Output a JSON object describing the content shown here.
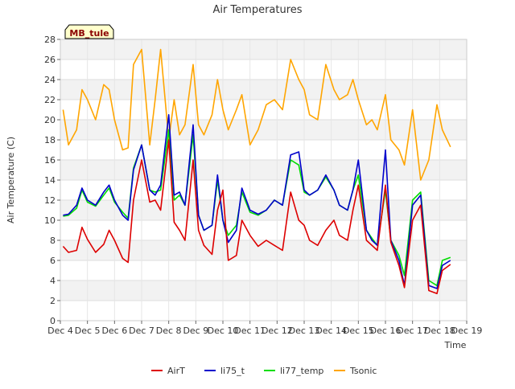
{
  "chart_data": {
    "type": "line",
    "title": "Air Temperatures",
    "xlabel": "Time",
    "ylabel": "Air Temperature (C)",
    "ylim": [
      0,
      28
    ],
    "yticks": [
      0,
      2,
      4,
      6,
      8,
      10,
      12,
      14,
      16,
      18,
      20,
      22,
      24,
      26,
      28
    ],
    "xlim": [
      4,
      19
    ],
    "xticks": [
      {
        "day": 4,
        "label": "Dec 4"
      },
      {
        "day": 5,
        "label": "Dec 5"
      },
      {
        "day": 6,
        "label": "Dec 6"
      },
      {
        "day": 7,
        "label": "Dec 7"
      },
      {
        "day": 8,
        "label": "Dec 8"
      },
      {
        "day": 9,
        "label": "Dec 9"
      },
      {
        "day": 10,
        "label": "Dec 10"
      },
      {
        "day": 11,
        "label": "Dec 11"
      },
      {
        "day": 12,
        "label": "Dec 12"
      },
      {
        "day": 13,
        "label": "Dec 13"
      },
      {
        "day": 14,
        "label": "Dec 14"
      },
      {
        "day": 15,
        "label": "Dec 15"
      },
      {
        "day": 16,
        "label": "Dec 16"
      },
      {
        "day": 17,
        "label": "Dec 17"
      },
      {
        "day": 18,
        "label": "Dec 18"
      },
      {
        "day": 19,
        "label": "Dec 19"
      }
    ],
    "station_label": "MB_tule",
    "grid": "horizontal",
    "banded_background": true,
    "legend_position": "bottom",
    "x": [
      4.1,
      4.3,
      4.6,
      4.8,
      5.0,
      5.3,
      5.6,
      5.8,
      6.0,
      6.3,
      6.5,
      6.7,
      7.0,
      7.3,
      7.5,
      7.7,
      8.0,
      8.2,
      8.4,
      8.6,
      8.9,
      9.1,
      9.3,
      9.6,
      9.8,
      10.0,
      10.2,
      10.5,
      10.7,
      11.0,
      11.3,
      11.6,
      11.9,
      12.2,
      12.5,
      12.8,
      13.0,
      13.2,
      13.5,
      13.8,
      14.1,
      14.3,
      14.6,
      14.8,
      15.0,
      15.3,
      15.5,
      15.7,
      16.0,
      16.2,
      16.5,
      16.7,
      17.0,
      17.3,
      17.6,
      17.9,
      18.1,
      18.4
    ],
    "series": [
      {
        "name": "AirT",
        "color": "#dd0000",
        "values": [
          7.4,
          6.8,
          7.0,
          9.3,
          8.1,
          6.8,
          7.6,
          9.0,
          8.0,
          6.2,
          5.8,
          12.0,
          16.0,
          11.8,
          12.0,
          11.0,
          18.0,
          9.8,
          9.0,
          8.0,
          16.0,
          9.0,
          7.5,
          6.6,
          11.0,
          13.0,
          6.0,
          6.5,
          10.0,
          8.5,
          7.4,
          8.0,
          7.5,
          7.0,
          12.8,
          10.0,
          9.5,
          8.0,
          7.5,
          9.0,
          10.0,
          8.5,
          8.0,
          11.0,
          13.5,
          8.0,
          7.5,
          7.0,
          13.5,
          7.8,
          5.5,
          3.3,
          10.0,
          11.5,
          3.0,
          2.7,
          5.0,
          5.6
        ]
      },
      {
        "name": "li75_t",
        "color": "#0000cc",
        "values": [
          10.5,
          10.6,
          11.5,
          13.2,
          12.0,
          11.5,
          12.8,
          13.5,
          12.0,
          10.5,
          10.0,
          15.0,
          17.5,
          13.0,
          12.5,
          13.5,
          20.5,
          12.5,
          12.8,
          11.5,
          19.5,
          10.5,
          9.0,
          9.5,
          14.5,
          10.0,
          7.8,
          9.0,
          13.2,
          11.0,
          10.6,
          11.0,
          12.0,
          11.5,
          16.5,
          16.8,
          13.0,
          12.5,
          13.0,
          14.5,
          13.0,
          11.5,
          11.0,
          13.0,
          16.0,
          9.0,
          8.0,
          7.5,
          17.0,
          8.0,
          6.0,
          3.5,
          11.5,
          12.5,
          3.5,
          3.2,
          5.5,
          6.0
        ]
      },
      {
        "name": "li77_temp",
        "color": "#00dd00",
        "values": [
          10.4,
          10.5,
          11.2,
          13.0,
          11.8,
          11.4,
          12.5,
          13.2,
          11.8,
          10.8,
          10.2,
          15.2,
          17.5,
          13.0,
          12.8,
          13.0,
          19.0,
          12.0,
          12.5,
          11.5,
          18.5,
          10.5,
          9.0,
          9.5,
          14.0,
          10.0,
          8.5,
          9.5,
          12.8,
          10.8,
          10.5,
          11.0,
          12.0,
          11.5,
          16.0,
          15.5,
          12.8,
          12.5,
          13.0,
          14.3,
          13.0,
          11.5,
          11.0,
          13.0,
          14.5,
          9.0,
          8.2,
          7.5,
          13.0,
          8.0,
          6.5,
          4.5,
          12.0,
          12.8,
          4.0,
          3.5,
          6.0,
          6.3
        ]
      },
      {
        "name": "Tsonic",
        "color": "#ffa500",
        "values": [
          21.0,
          17.5,
          19.0,
          23.0,
          22.0,
          20.0,
          23.5,
          23.0,
          20.0,
          17.0,
          17.2,
          25.5,
          27.0,
          17.5,
          22.0,
          27.0,
          18.0,
          22.0,
          18.5,
          19.5,
          25.5,
          19.5,
          18.5,
          20.5,
          24.0,
          21.0,
          19.0,
          21.0,
          22.5,
          17.5,
          19.0,
          21.5,
          22.0,
          21.0,
          26.0,
          24.0,
          23.0,
          20.5,
          20.0,
          25.5,
          23.0,
          22.0,
          22.5,
          24.0,
          22.0,
          19.5,
          20.0,
          19.0,
          22.5,
          18.0,
          17.0,
          15.5,
          21.0,
          14.0,
          16.0,
          21.5,
          19.0,
          17.3
        ]
      }
    ]
  }
}
